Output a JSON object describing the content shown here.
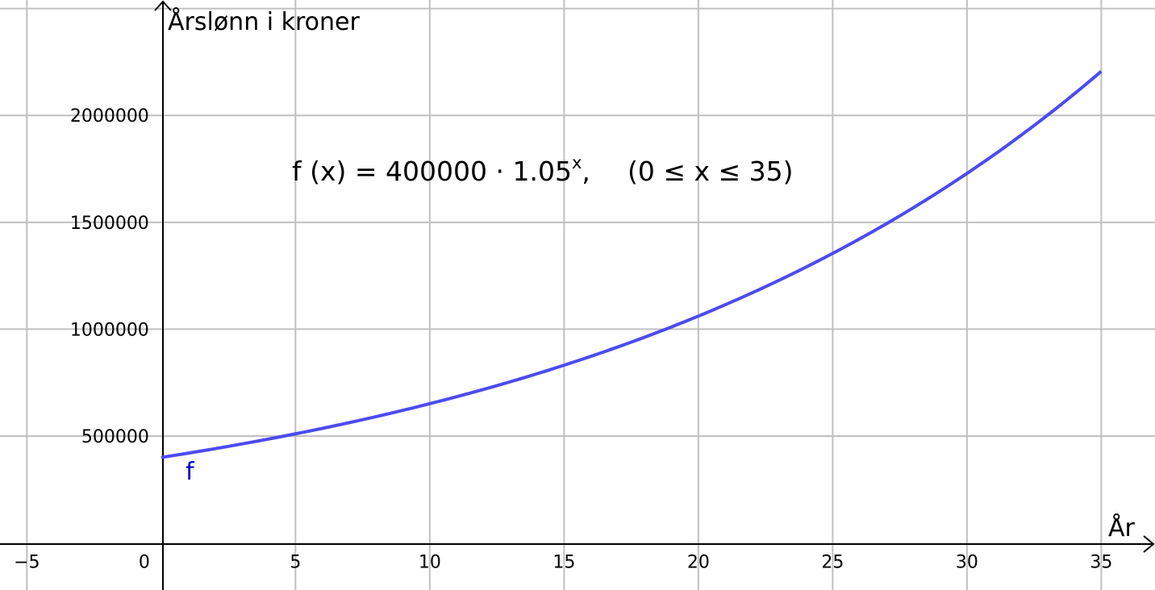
{
  "chart_data": {
    "type": "line",
    "title": "",
    "xlabel": "År",
    "ylabel": "Årslønn i kroner",
    "xlim": [
      -6,
      37
    ],
    "ylim": [
      -220000,
      2540000
    ],
    "x_ticks": [
      -5,
      0,
      5,
      10,
      15,
      20,
      25,
      30,
      35
    ],
    "x_tick_labels": [
      "−5",
      "0",
      "5",
      "10",
      "15",
      "20",
      "25",
      "30",
      "35"
    ],
    "y_ticks": [
      500000,
      1000000,
      1500000,
      2000000
    ],
    "y_tick_labels": [
      "500000",
      "1000000",
      "1500000",
      "2000000"
    ],
    "grid": true,
    "series": [
      {
        "name": "f",
        "color": "#4b4bf0",
        "function": {
          "a": 400000,
          "b": 1.05,
          "x_min": 0,
          "x_max": 35
        }
      }
    ],
    "annotation": {
      "lhs": "f (x)  =  400000 · 1.05",
      "exponent": "x",
      "separator": ",",
      "domain": "(0 ≤ x ≤ 35)"
    }
  }
}
